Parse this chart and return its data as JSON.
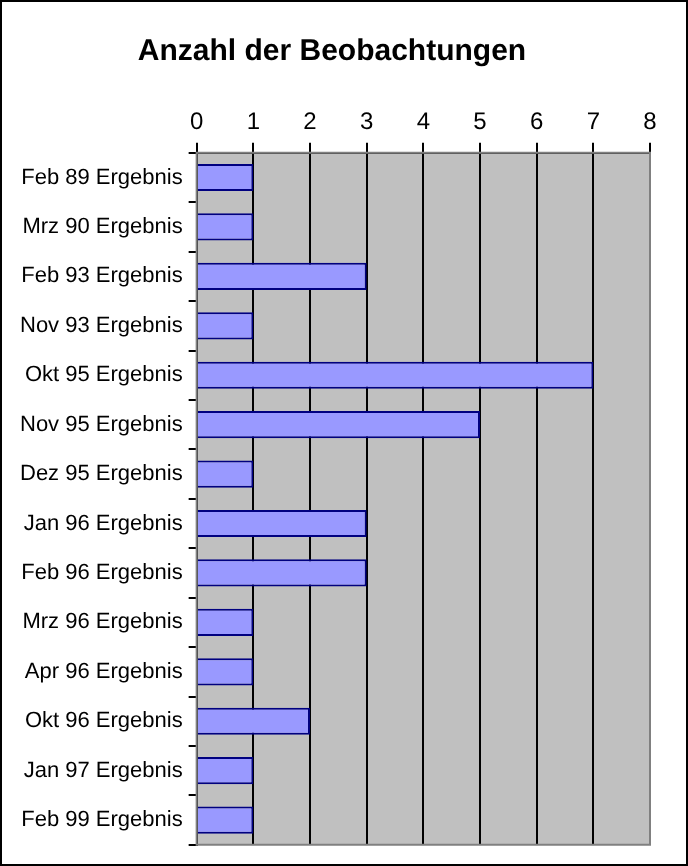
{
  "chart_data": {
    "type": "bar",
    "orientation": "horizontal",
    "title": "Anzahl der Beobachtungen",
    "categories": [
      "Feb 89 Ergebnis",
      "Mrz 90 Ergebnis",
      "Feb 93 Ergebnis",
      "Nov 93 Ergebnis",
      "Okt 95 Ergebnis",
      "Nov 95 Ergebnis",
      "Dez 95 Ergebnis",
      "Jan 96 Ergebnis",
      "Feb 96 Ergebnis",
      "Mrz 96 Ergebnis",
      "Apr 96 Ergebnis",
      "Okt 96 Ergebnis",
      "Jan 97 Ergebnis",
      "Feb 99 Ergebnis"
    ],
    "values": [
      1,
      1,
      3,
      1,
      7,
      5,
      1,
      3,
      3,
      1,
      1,
      2,
      1,
      1
    ],
    "color": "#9999ff",
    "xlim": [
      0,
      8
    ],
    "xticks": [
      0,
      1,
      2,
      3,
      4,
      5,
      6,
      7,
      8
    ],
    "grid": "x"
  }
}
